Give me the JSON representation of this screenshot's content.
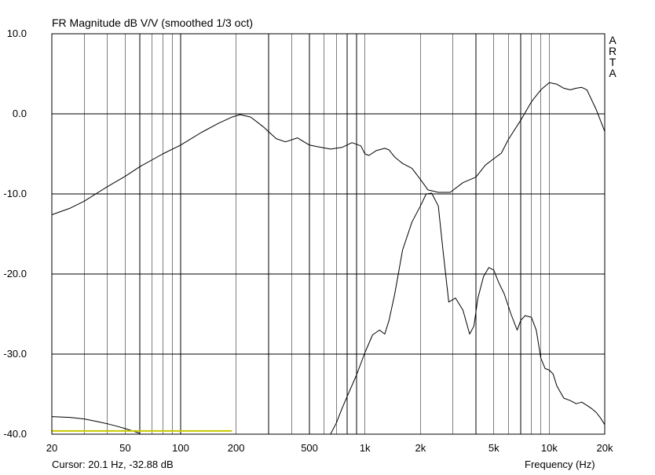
{
  "chart_data": {
    "type": "line",
    "title": "FR Magnitude dB V/V (smoothed 1/3 oct)",
    "xlabel": "Frequency (Hz)",
    "ylabel": "",
    "xscale": "log",
    "xlim": [
      20,
      20000
    ],
    "ylim": [
      -40,
      10
    ],
    "grid": true,
    "y_ticks": [
      "10.0",
      "0.0",
      "-10.0",
      "-20.0",
      "-30.0",
      "-40.0"
    ],
    "x_ticks": [
      {
        "value": 20,
        "label": "20"
      },
      {
        "value": 50,
        "label": "50"
      },
      {
        "value": 100,
        "label": "100"
      },
      {
        "value": 200,
        "label": "200"
      },
      {
        "value": 500,
        "label": "500"
      },
      {
        "value": 1000,
        "label": "1k"
      },
      {
        "value": 2000,
        "label": "2k"
      },
      {
        "value": 5000,
        "label": "5k"
      },
      {
        "value": 10000,
        "label": "10k"
      },
      {
        "value": 20000,
        "label": "20k"
      }
    ],
    "series": [
      {
        "color": "#000000",
        "x": [
          20,
          25,
          30,
          40,
          50,
          60,
          80,
          100,
          130,
          160,
          190,
          210,
          240,
          280,
          330,
          370,
          430,
          500,
          550,
          650,
          750,
          850,
          950,
          1000,
          1050,
          1150,
          1280,
          1350,
          1450,
          1600,
          1800,
          2000,
          2200,
          2500,
          2900,
          3400,
          4000,
          4500,
          5000,
          5500,
          6000,
          7000,
          8000,
          9000,
          10000,
          11000,
          12000,
          13000,
          14000,
          15000,
          16000,
          18000,
          20000
        ],
        "y": [
          -12.6,
          -11.8,
          -10.9,
          -9.1,
          -7.8,
          -6.6,
          -5.0,
          -3.9,
          -2.3,
          -1.2,
          -0.4,
          -0.1,
          -0.4,
          -1.6,
          -3.1,
          -3.5,
          -3.0,
          -3.9,
          -4.1,
          -4.4,
          -4.2,
          -3.6,
          -4.0,
          -5.0,
          -5.2,
          -4.6,
          -4.3,
          -4.5,
          -5.4,
          -6.2,
          -6.8,
          -8.2,
          -9.5,
          -9.8,
          -9.8,
          -8.6,
          -7.9,
          -6.4,
          -5.6,
          -4.9,
          -3.2,
          -0.8,
          1.5,
          3.0,
          3.9,
          3.7,
          3.2,
          3.0,
          3.2,
          3.3,
          3.0,
          0.5,
          -2.2
        ]
      },
      {
        "color": "#000000",
        "x": [
          650,
          700,
          750,
          800,
          900,
          1000,
          1100,
          1200,
          1280,
          1350,
          1450,
          1600,
          1800,
          2000,
          2150,
          2300,
          2500,
          2650,
          2850,
          3100,
          3400,
          3700,
          3900,
          4100,
          4400,
          4700,
          5000,
          5300,
          5700,
          6200,
          6700,
          7000,
          7400,
          8000,
          8500,
          9000,
          9500,
          10000,
          10500,
          11000,
          12000,
          13000,
          14000,
          15000,
          16000,
          17000,
          18000,
          19000,
          20000
        ],
        "y": [
          -40.0,
          -38.6,
          -36.8,
          -35.3,
          -32.6,
          -29.8,
          -27.6,
          -27.0,
          -27.5,
          -25.8,
          -22.5,
          -17.0,
          -13.5,
          -11.5,
          -10.0,
          -9.9,
          -11.5,
          -17.0,
          -23.5,
          -23.0,
          -24.5,
          -27.5,
          -26.5,
          -23.0,
          -20.3,
          -19.2,
          -19.5,
          -21.0,
          -22.5,
          -25.0,
          -27.0,
          -25.8,
          -25.2,
          -25.4,
          -27.0,
          -30.5,
          -31.8,
          -32.0,
          -32.5,
          -34.0,
          -35.5,
          -35.8,
          -36.2,
          -36.0,
          -36.4,
          -36.8,
          -37.3,
          -38.0,
          -38.8
        ]
      },
      {
        "color": "#000000",
        "x": [
          20,
          25,
          30,
          35,
          40,
          45,
          50,
          55,
          60
        ],
        "y": [
          -37.8,
          -37.9,
          -38.1,
          -38.4,
          -38.7,
          -39.0,
          -39.3,
          -39.6,
          -39.9
        ]
      },
      {
        "color": "#c8c800",
        "x": [
          20,
          190
        ],
        "y": [
          -39.6,
          -39.6
        ]
      }
    ]
  },
  "header": {
    "brand_letters": [
      "A",
      "R",
      "T",
      "A"
    ]
  },
  "status": {
    "cursor_text": "Cursor: 20.1 Hz, -32.88 dB"
  }
}
